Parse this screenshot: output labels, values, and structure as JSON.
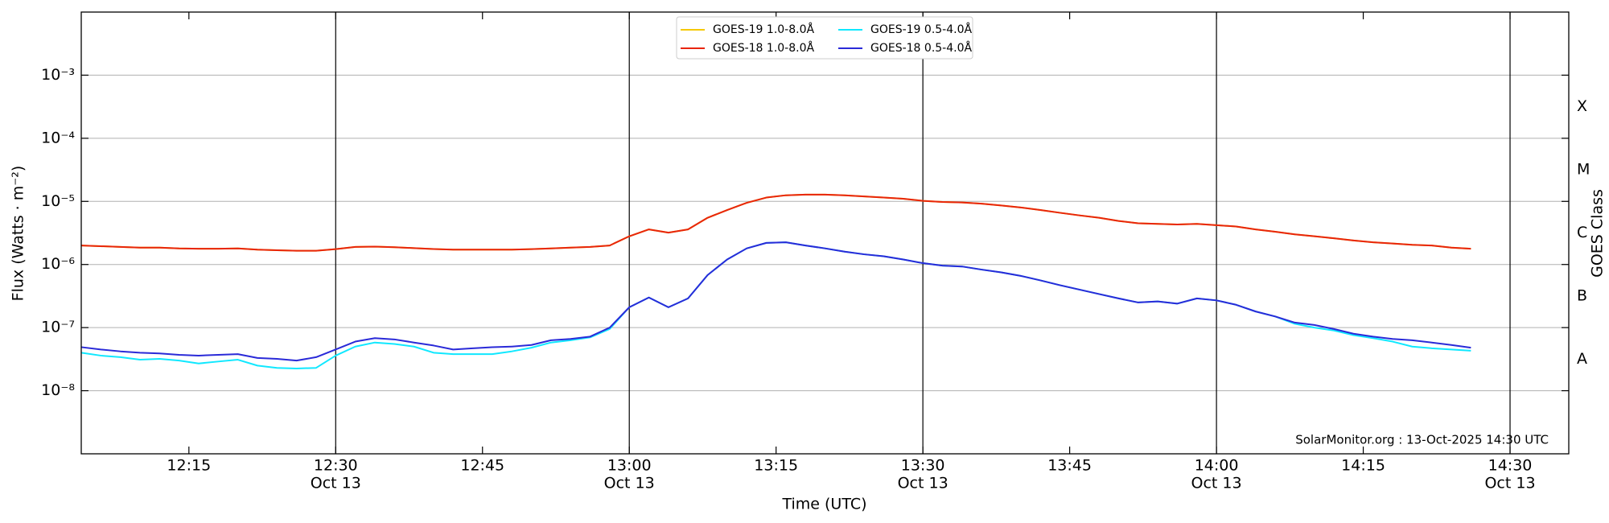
{
  "chart_data": {
    "type": "line",
    "log_y": true,
    "grid": true,
    "xlabel": "Time (UTC)",
    "ylabel": "Flux (Watts · m⁻²)",
    "y2label": "GOES Class",
    "annotation": "SolarMonitor.org : 13-Oct-2025 14:30 UTC",
    "legend_position": "upper center",
    "xlim": [
      "12:04",
      "14:36"
    ],
    "xticks": [
      "12:15",
      {
        "value": "12:30",
        "label": "12:30",
        "sublabel": "Oct 13"
      },
      "12:45",
      {
        "value": "13:00",
        "label": "13:00",
        "sublabel": "Oct 13"
      },
      "13:15",
      {
        "value": "13:30",
        "label": "13:30",
        "sublabel": "Oct 13"
      },
      "13:45",
      {
        "value": "14:00",
        "label": "14:00",
        "sublabel": "Oct 13"
      },
      "14:15",
      {
        "value": "14:30",
        "label": "14:30",
        "sublabel": "Oct 13"
      }
    ],
    "ylim": [
      1e-09,
      0.01
    ],
    "yticks": [
      {
        "value": 1e-08,
        "label": "10⁻⁸"
      },
      {
        "value": 1e-07,
        "label": "10⁻⁷"
      },
      {
        "value": 1e-06,
        "label": "10⁻⁶"
      },
      {
        "value": 1e-05,
        "label": "10⁻⁵"
      },
      {
        "value": 0.0001,
        "label": "10⁻⁴"
      },
      {
        "value": 0.001,
        "label": "10⁻³"
      }
    ],
    "y2lim": [
      1e-09,
      0.01
    ],
    "y2ticks": [
      {
        "value": 3.162e-08,
        "label": "A"
      },
      {
        "value": 3.162e-07,
        "label": "B"
      },
      {
        "value": 3.162e-06,
        "label": "C"
      },
      {
        "value": 3.162e-05,
        "label": "M"
      },
      {
        "value": 0.0003162,
        "label": "X"
      }
    ],
    "x": [
      "12:04",
      "12:06",
      "12:08",
      "12:10",
      "12:12",
      "12:14",
      "12:16",
      "12:18",
      "12:20",
      "12:22",
      "12:24",
      "12:26",
      "12:28",
      "12:30",
      "12:32",
      "12:34",
      "12:36",
      "12:38",
      "12:40",
      "12:42",
      "12:44",
      "12:46",
      "12:48",
      "12:50",
      "12:52",
      "12:54",
      "12:56",
      "12:58",
      "13:00",
      "13:02",
      "13:04",
      "13:06",
      "13:08",
      "13:10",
      "13:12",
      "13:14",
      "13:16",
      "13:18",
      "13:20",
      "13:22",
      "13:24",
      "13:26",
      "13:28",
      "13:30",
      "13:32",
      "13:34",
      "13:36",
      "13:38",
      "13:40",
      "13:42",
      "13:44",
      "13:46",
      "13:48",
      "13:50",
      "13:52",
      "13:54",
      "13:56",
      "13:58",
      "14:00",
      "14:02",
      "14:04",
      "14:06",
      "14:08",
      "14:10",
      "14:12",
      "14:14",
      "14:16",
      "14:18",
      "14:20",
      "14:22",
      "14:24",
      "14:26"
    ],
    "series": [
      {
        "name": "GOES-19 1.0-8.0Å",
        "color": "#f5c800",
        "values": [
          2e-06,
          1.95e-06,
          1.9e-06,
          1.85e-06,
          1.85e-06,
          1.8e-06,
          1.78e-06,
          1.78e-06,
          1.8e-06,
          1.72e-06,
          1.68e-06,
          1.65e-06,
          1.65e-06,
          1.75e-06,
          1.9e-06,
          1.92e-06,
          1.88e-06,
          1.82e-06,
          1.76e-06,
          1.72e-06,
          1.72e-06,
          1.72e-06,
          1.72e-06,
          1.75e-06,
          1.8e-06,
          1.85e-06,
          1.9e-06,
          2e-06,
          2.8e-06,
          3.6e-06,
          3.2e-06,
          3.6e-06,
          5.5e-06,
          7.3e-06,
          9.5e-06,
          1.15e-05,
          1.25e-05,
          1.28e-05,
          1.28e-05,
          1.25e-05,
          1.2e-05,
          1.15e-05,
          1.1e-05,
          1.02e-05,
          9.8e-06,
          9.6e-06,
          9.2e-06,
          8.6e-06,
          8e-06,
          7.3e-06,
          6.6e-06,
          6e-06,
          5.5e-06,
          4.9e-06,
          4.5e-06,
          4.4e-06,
          4.3e-06,
          4.4e-06,
          4.2e-06,
          4e-06,
          3.6e-06,
          3.3e-06,
          3e-06,
          2.8e-06,
          2.6e-06,
          2.4e-06,
          2.25e-06,
          2.15e-06,
          2.05e-06,
          2e-06,
          1.85e-06,
          1.78e-06
        ]
      },
      {
        "name": "GOES-18 1.0-8.0Å",
        "color": "#e8250c",
        "values": [
          2e-06,
          1.95e-06,
          1.9e-06,
          1.85e-06,
          1.85e-06,
          1.8e-06,
          1.78e-06,
          1.78e-06,
          1.8e-06,
          1.72e-06,
          1.68e-06,
          1.65e-06,
          1.65e-06,
          1.75e-06,
          1.9e-06,
          1.92e-06,
          1.88e-06,
          1.82e-06,
          1.76e-06,
          1.72e-06,
          1.72e-06,
          1.72e-06,
          1.72e-06,
          1.75e-06,
          1.8e-06,
          1.85e-06,
          1.9e-06,
          2e-06,
          2.8e-06,
          3.6e-06,
          3.2e-06,
          3.6e-06,
          5.5e-06,
          7.3e-06,
          9.5e-06,
          1.15e-05,
          1.25e-05,
          1.28e-05,
          1.28e-05,
          1.25e-05,
          1.2e-05,
          1.15e-05,
          1.1e-05,
          1.02e-05,
          9.8e-06,
          9.6e-06,
          9.2e-06,
          8.6e-06,
          8e-06,
          7.3e-06,
          6.6e-06,
          6e-06,
          5.5e-06,
          4.9e-06,
          4.5e-06,
          4.4e-06,
          4.3e-06,
          4.4e-06,
          4.2e-06,
          4e-06,
          3.6e-06,
          3.3e-06,
          3e-06,
          2.8e-06,
          2.6e-06,
          2.4e-06,
          2.25e-06,
          2.15e-06,
          2.05e-06,
          2e-06,
          1.85e-06,
          1.78e-06
        ]
      },
      {
        "name": "GOES-19 0.5-4.0Å",
        "color": "#10e8ff",
        "values": [
          4e-08,
          3.6e-08,
          3.4e-08,
          3.1e-08,
          3.2e-08,
          3e-08,
          2.7e-08,
          2.9e-08,
          3.1e-08,
          2.5e-08,
          2.3e-08,
          2.25e-08,
          2.3e-08,
          3.6e-08,
          5e-08,
          5.8e-08,
          5.5e-08,
          5e-08,
          4e-08,
          3.8e-08,
          3.8e-08,
          3.8e-08,
          4.2e-08,
          4.8e-08,
          5.8e-08,
          6.3e-08,
          7e-08,
          9.5e-08,
          2.1e-07,
          3e-07,
          2.1e-07,
          2.9e-07,
          6.8e-07,
          1.2e-06,
          1.8e-06,
          2.2e-06,
          2.25e-06,
          2e-06,
          1.8e-06,
          1.6e-06,
          1.45e-06,
          1.35e-06,
          1.2e-06,
          1.05e-06,
          9.6e-07,
          9.3e-07,
          8.3e-07,
          7.5e-07,
          6.6e-07,
          5.6e-07,
          4.7e-07,
          4e-07,
          3.4e-07,
          2.9e-07,
          2.5e-07,
          2.6e-07,
          2.4e-07,
          2.9e-07,
          2.7e-07,
          2.3e-07,
          1.8e-07,
          1.5e-07,
          1.15e-07,
          1e-07,
          9e-08,
          7.6e-08,
          6.8e-08,
          6e-08,
          5e-08,
          4.7e-08,
          4.5e-08,
          4.3e-08
        ]
      },
      {
        "name": "GOES-18 0.5-4.0Å",
        "color": "#2a2ad8",
        "values": [
          4.9e-08,
          4.5e-08,
          4.2e-08,
          4e-08,
          3.9e-08,
          3.7e-08,
          3.6e-08,
          3.7e-08,
          3.8e-08,
          3.3e-08,
          3.2e-08,
          3e-08,
          3.4e-08,
          4.5e-08,
          6e-08,
          6.8e-08,
          6.5e-08,
          5.8e-08,
          5.2e-08,
          4.5e-08,
          4.7e-08,
          4.9e-08,
          5e-08,
          5.3e-08,
          6.3e-08,
          6.6e-08,
          7.2e-08,
          1e-07,
          2.1e-07,
          3e-07,
          2.1e-07,
          2.9e-07,
          6.8e-07,
          1.2e-06,
          1.8e-06,
          2.2e-06,
          2.25e-06,
          2e-06,
          1.8e-06,
          1.6e-06,
          1.45e-06,
          1.35e-06,
          1.2e-06,
          1.05e-06,
          9.6e-07,
          9.3e-07,
          8.3e-07,
          7.5e-07,
          6.6e-07,
          5.6e-07,
          4.7e-07,
          4e-07,
          3.4e-07,
          2.9e-07,
          2.5e-07,
          2.6e-07,
          2.4e-07,
          2.9e-07,
          2.7e-07,
          2.3e-07,
          1.8e-07,
          1.5e-07,
          1.2e-07,
          1.1e-07,
          9.5e-08,
          8e-08,
          7.2e-08,
          6.6e-08,
          6.3e-08,
          5.8e-08,
          5.3e-08,
          4.8e-08
        ]
      }
    ]
  }
}
